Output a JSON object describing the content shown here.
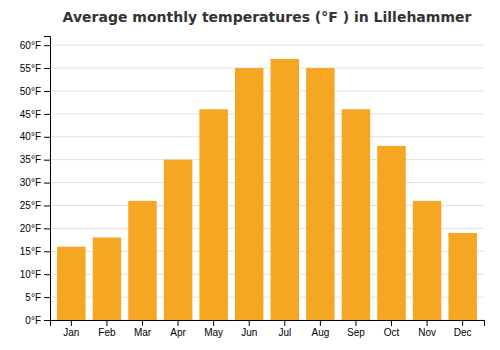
{
  "chart_data": {
    "type": "bar",
    "title": "Average monthly temperatures (°F ) in Lillehammer",
    "categories": [
      "Jan",
      "Feb",
      "Mar",
      "Apr",
      "May",
      "Jun",
      "Jul",
      "Aug",
      "Sep",
      "Oct",
      "Nov",
      "Dec"
    ],
    "values": [
      16,
      18,
      26,
      35,
      46,
      55,
      57,
      55,
      46,
      38,
      26,
      19
    ],
    "color": "#F5A623",
    "ylim": [
      0,
      62
    ],
    "yticks": [
      {
        "value": 0,
        "label": "0°F"
      },
      {
        "value": 5,
        "label": "5°F"
      },
      {
        "value": 10,
        "label": "10°F"
      },
      {
        "value": 15,
        "label": "15°F"
      },
      {
        "value": 20,
        "label": "20°F"
      },
      {
        "value": 25,
        "label": "25°F"
      },
      {
        "value": 30,
        "label": "30°F"
      },
      {
        "value": 35,
        "label": "35°F"
      },
      {
        "value": 40,
        "label": "40°F"
      },
      {
        "value": 45,
        "label": "45°F"
      },
      {
        "value": 50,
        "label": "50°F"
      },
      {
        "value": 55,
        "label": "55°F"
      },
      {
        "value": 60,
        "label": "60°F"
      }
    ],
    "grid": true
  }
}
